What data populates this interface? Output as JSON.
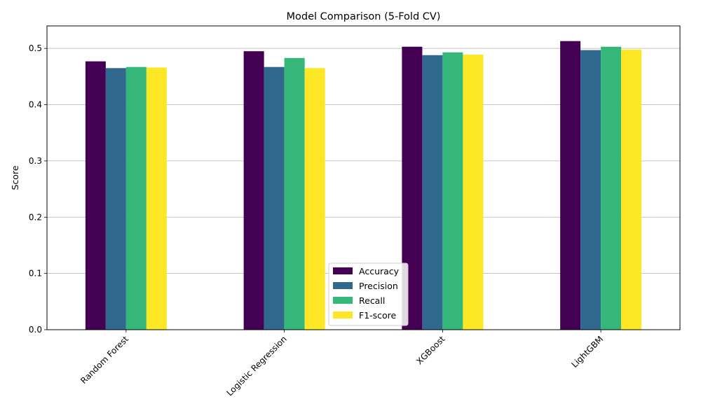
{
  "chart_data": {
    "type": "bar",
    "title": "Model Comparison (5-Fold CV)",
    "xlabel": "",
    "ylabel": "Score",
    "ylim": [
      0,
      0.54
    ],
    "yticks": [
      "0.0",
      "0.1",
      "0.2",
      "0.3",
      "0.4",
      "0.5"
    ],
    "grid": "horizontal",
    "legend_position": "lower-center",
    "categories": [
      "Random Forest",
      "Logistic Regression",
      "XGBoost",
      "LightGBM"
    ],
    "series": [
      {
        "name": "Accuracy",
        "color": "#440154",
        "values": [
          0.477,
          0.495,
          0.503,
          0.513
        ]
      },
      {
        "name": "Precision",
        "color": "#31688e",
        "values": [
          0.465,
          0.467,
          0.488,
          0.497
        ]
      },
      {
        "name": "Recall",
        "color": "#35b779",
        "values": [
          0.467,
          0.483,
          0.493,
          0.503
        ]
      },
      {
        "name": "F1-score",
        "color": "#fde725",
        "values": [
          0.466,
          0.465,
          0.489,
          0.498
        ]
      }
    ]
  }
}
